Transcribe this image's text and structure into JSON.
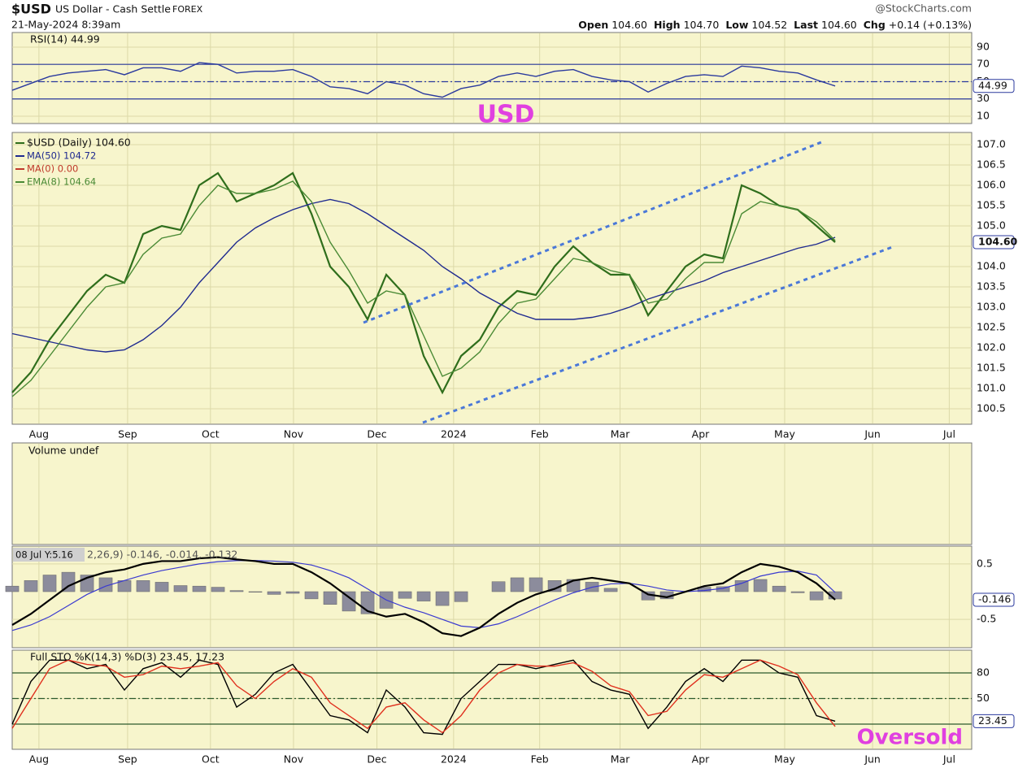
{
  "header": {
    "symbol": "$USD",
    "name": "US Dollar - Cash Settle",
    "exchange": "FOREX",
    "date": "21-May-2024 8:39am",
    "brand": "@StockCharts.com",
    "quote": [
      {
        "label": "Open",
        "value": "104.60"
      },
      {
        "label": "High",
        "value": "104.70"
      },
      {
        "label": "Low",
        "value": "104.52"
      },
      {
        "label": "Last",
        "value": "104.60"
      },
      {
        "label": "Chg",
        "value": "+0.14 (+0.13%)"
      }
    ]
  },
  "chart_data": [
    {
      "type": "line",
      "title": "RSI(14) 44.99",
      "annotation": "USD",
      "last_label": "44.99",
      "xlim": [
        0,
        51.3
      ],
      "ylim": [
        1.5,
        106.9
      ],
      "yticks": [
        10,
        30,
        50,
        70,
        90
      ],
      "guide_lines": [
        30,
        50,
        70
      ],
      "series": [
        {
          "color": "#2b3a9e",
          "values": [
            40,
            48,
            56,
            60,
            62,
            64,
            58,
            66,
            66,
            62,
            72,
            70,
            60,
            62,
            62,
            64,
            56,
            44,
            42,
            36,
            50,
            46,
            36,
            32,
            42,
            46,
            56,
            60,
            56,
            62,
            64,
            56,
            52,
            50,
            38,
            48,
            56,
            58,
            56,
            68,
            66,
            62,
            60,
            52,
            44.99
          ]
        }
      ]
    },
    {
      "type": "line",
      "last_label": "104.60",
      "xlim": [
        0,
        51.3
      ],
      "ylim": [
        100.12,
        107.3
      ],
      "yticks": [
        100.5,
        {
          "value": 101,
          "label": "101.0"
        },
        101.5,
        {
          "value": 102,
          "label": "102.0"
        },
        102.5,
        {
          "value": 103,
          "label": "103.0"
        },
        103.5,
        {
          "value": 104,
          "label": "104.0"
        },
        104.5,
        {
          "value": 105,
          "label": "105.0"
        },
        105.5,
        {
          "value": 106,
          "label": "106.0"
        },
        106.5,
        {
          "value": 107,
          "label": "107.0"
        }
      ],
      "xticks": [
        {
          "value": 1.43,
          "label": "Aug"
        },
        {
          "value": 6.17,
          "label": "Sep"
        },
        {
          "value": 10.6,
          "label": "Oct"
        },
        {
          "value": 15.04,
          "label": "Nov"
        },
        {
          "value": 19.5,
          "label": "Dec"
        },
        {
          "value": 23.6,
          "label": "2024"
        },
        {
          "value": 28.2,
          "label": "Feb"
        },
        {
          "value": 32.5,
          "label": "Mar"
        },
        {
          "value": 36.8,
          "label": "Apr"
        },
        {
          "value": 41.3,
          "label": "May"
        },
        {
          "value": 46.0,
          "label": "Jun"
        },
        {
          "value": 50.1,
          "label": "Jul"
        }
      ],
      "series": [
        {
          "name": "$USD (Daily) 104.60",
          "color": "#2f6e1c",
          "values": [
            100.9,
            101.4,
            102.2,
            102.8,
            103.4,
            103.8,
            103.6,
            104.8,
            105.0,
            104.9,
            106.0,
            106.3,
            105.6,
            105.8,
            106.0,
            106.3,
            105.3,
            104.0,
            103.5,
            102.7,
            103.8,
            103.3,
            101.8,
            100.9,
            101.8,
            102.2,
            103.0,
            103.4,
            103.3,
            104.0,
            104.5,
            104.1,
            103.8,
            103.8,
            102.8,
            103.4,
            104.0,
            104.3,
            104.2,
            106.0,
            105.8,
            105.5,
            105.4,
            105.0,
            104.6
          ]
        },
        {
          "name": "MA(50) 104.72",
          "color": "#1f2a8f",
          "values": [
            102.35,
            102.25,
            102.15,
            102.05,
            101.95,
            101.9,
            101.95,
            102.2,
            102.55,
            103.0,
            103.6,
            104.1,
            104.6,
            104.95,
            105.2,
            105.4,
            105.55,
            105.65,
            105.55,
            105.3,
            105.0,
            104.7,
            104.4,
            104.0,
            103.7,
            103.35,
            103.1,
            102.85,
            102.7,
            102.7,
            102.7,
            102.75,
            102.85,
            103.0,
            103.2,
            103.35,
            103.5,
            103.65,
            103.85,
            104.0,
            104.15,
            104.3,
            104.45,
            104.55,
            104.72
          ]
        },
        {
          "name": "EMA(8) 104.64",
          "color": "#4a8a35",
          "values": [
            100.8,
            101.2,
            101.8,
            102.4,
            103.0,
            103.5,
            103.6,
            104.3,
            104.7,
            104.8,
            105.5,
            106.0,
            105.8,
            105.8,
            105.9,
            106.1,
            105.6,
            104.6,
            103.9,
            103.1,
            103.4,
            103.3,
            102.3,
            101.3,
            101.5,
            101.9,
            102.6,
            103.1,
            103.2,
            103.7,
            104.2,
            104.1,
            103.9,
            103.8,
            103.1,
            103.2,
            103.7,
            104.1,
            104.1,
            105.3,
            105.6,
            105.5,
            105.4,
            105.1,
            104.64
          ]
        }
      ],
      "legend_items": [
        {
          "name": "MA(0) 0.00",
          "color": "#c0392b"
        }
      ]
    },
    {
      "type": "volume",
      "title": "Volume undef"
    },
    {
      "type": "macd",
      "title": "2,26,9) -0.146, -0.014, -0.132",
      "tooltip": "08 Jul Y:5.16",
      "last_label": "-0.146",
      "xlim": [
        0,
        51.3
      ],
      "ylim": [
        -1.01,
        0.82
      ],
      "yticks": [
        -0.5,
        0.5
      ],
      "macd": {
        "color": "#000000",
        "values": [
          -0.6,
          -0.4,
          -0.15,
          0.1,
          0.25,
          0.35,
          0.4,
          0.5,
          0.55,
          0.55,
          0.6,
          0.62,
          0.58,
          0.55,
          0.5,
          0.5,
          0.35,
          0.15,
          -0.1,
          -0.35,
          -0.45,
          -0.4,
          -0.55,
          -0.75,
          -0.8,
          -0.65,
          -0.4,
          -0.2,
          -0.05,
          0.05,
          0.2,
          0.25,
          0.2,
          0.15,
          -0.05,
          -0.1,
          0.0,
          0.1,
          0.15,
          0.35,
          0.5,
          0.45,
          0.35,
          0.15,
          -0.146
        ]
      },
      "signal": {
        "color": "#3a3ad0",
        "values": [
          -0.7,
          -0.6,
          -0.45,
          -0.25,
          -0.05,
          0.1,
          0.2,
          0.3,
          0.38,
          0.44,
          0.5,
          0.54,
          0.56,
          0.56,
          0.55,
          0.53,
          0.48,
          0.38,
          0.25,
          0.05,
          -0.15,
          -0.28,
          -0.38,
          -0.5,
          -0.62,
          -0.65,
          -0.58,
          -0.45,
          -0.3,
          -0.15,
          -0.02,
          0.08,
          0.14,
          0.15,
          0.1,
          0.03,
          0.0,
          0.02,
          0.06,
          0.15,
          0.28,
          0.35,
          0.37,
          0.3,
          -0.014
        ]
      },
      "histogram": {
        "color": "#8c8c9c",
        "values": [
          0.1,
          0.2,
          0.3,
          0.35,
          0.3,
          0.25,
          0.2,
          0.2,
          0.17,
          0.11,
          0.1,
          0.08,
          0.02,
          -0.01,
          -0.05,
          -0.03,
          -0.13,
          -0.23,
          -0.35,
          -0.4,
          -0.3,
          -0.12,
          -0.17,
          -0.25,
          -0.18,
          0,
          0.18,
          0.25,
          0.25,
          0.2,
          0.22,
          0.17,
          0.06,
          0,
          -0.15,
          -0.13,
          0,
          0.08,
          0.09,
          0.2,
          0.22,
          0.1,
          -0.02,
          -0.15,
          -0.132
        ]
      }
    },
    {
      "type": "line",
      "title": "Full STO %K(14,3) %D(3) 23.45, 17.23",
      "annotation": "Oversold",
      "last_label": "23.45",
      "xlim": [
        0,
        51.3
      ],
      "ylim": [
        -9.5,
        106.7
      ],
      "yticks": [
        50,
        80
      ],
      "guide_lines": [
        20,
        50,
        80
      ],
      "xticks": [
        {
          "value": 1.43,
          "label": "Aug"
        },
        {
          "value": 6.17,
          "label": "Sep"
        },
        {
          "value": 10.6,
          "label": "Oct"
        },
        {
          "value": 15.04,
          "label": "Nov"
        },
        {
          "value": 19.5,
          "label": "Dec"
        },
        {
          "value": 23.6,
          "label": "2024"
        },
        {
          "value": 28.2,
          "label": "Feb"
        },
        {
          "value": 32.5,
          "label": "Mar"
        },
        {
          "value": 36.8,
          "label": "Apr"
        },
        {
          "value": 41.3,
          "label": "May"
        },
        {
          "value": 46.0,
          "label": "Jun"
        },
        {
          "value": 50.1,
          "label": "Jul"
        }
      ],
      "series": [
        {
          "color": "#000000",
          "values": [
            20,
            70,
            95,
            95,
            85,
            90,
            60,
            85,
            92,
            75,
            95,
            90,
            40,
            55,
            80,
            90,
            60,
            30,
            25,
            10,
            60,
            40,
            10,
            8,
            50,
            70,
            90,
            90,
            85,
            90,
            95,
            70,
            60,
            55,
            15,
            40,
            70,
            85,
            70,
            95,
            95,
            80,
            75,
            30,
            23.45
          ]
        },
        {
          "color": "#e0301e",
          "values": [
            15,
            50,
            85,
            95,
            90,
            88,
            75,
            78,
            88,
            85,
            88,
            92,
            65,
            50,
            70,
            85,
            75,
            45,
            30,
            15,
            40,
            45,
            25,
            10,
            30,
            60,
            80,
            90,
            88,
            88,
            92,
            82,
            65,
            58,
            30,
            35,
            60,
            78,
            75,
            85,
            95,
            88,
            78,
            45,
            17.23
          ]
        }
      ]
    }
  ]
}
